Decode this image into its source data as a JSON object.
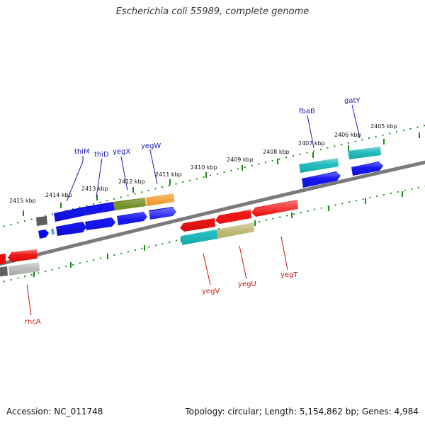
{
  "header": {
    "title": "Escherichia coli 55989, complete genome"
  },
  "footer": {
    "accession": "Accession: NC_011748",
    "summary": "Topology: circular; Length: 5,154,862 bp; Genes: 4,984"
  },
  "colors": {
    "backbone": "#808080",
    "tick": "#1a8a1a",
    "forward_label": "#1a1ab4",
    "reverse_label": "#c81414",
    "cds_blue": "#0a0aee",
    "cds_red": "#ee0a0a",
    "cds_cyan": "#16b8b8",
    "cds_olive": "#6f8a1e",
    "cds_orange": "#f08a0a",
    "cds_khaki": "#b8b46c",
    "cds_gray": "#606060",
    "cds_lightgray": "#b8b8b8"
  },
  "kbp_labels": [
    "2415 kbp",
    "2414 kbp",
    "2413 kbp",
    "2412 kbp",
    "2411 kbp",
    "2410 kbp",
    "2409 kbp",
    "2408 kbp",
    "2407 kbp",
    "2406 kbp",
    "2405 kbp"
  ],
  "gene_labels": {
    "forward": [
      "thiM",
      "thiD",
      "yegX",
      "yegW",
      "fbaB",
      "gatY"
    ],
    "reverse": [
      "yegV",
      "yegU",
      "yegT",
      "rncA"
    ]
  }
}
